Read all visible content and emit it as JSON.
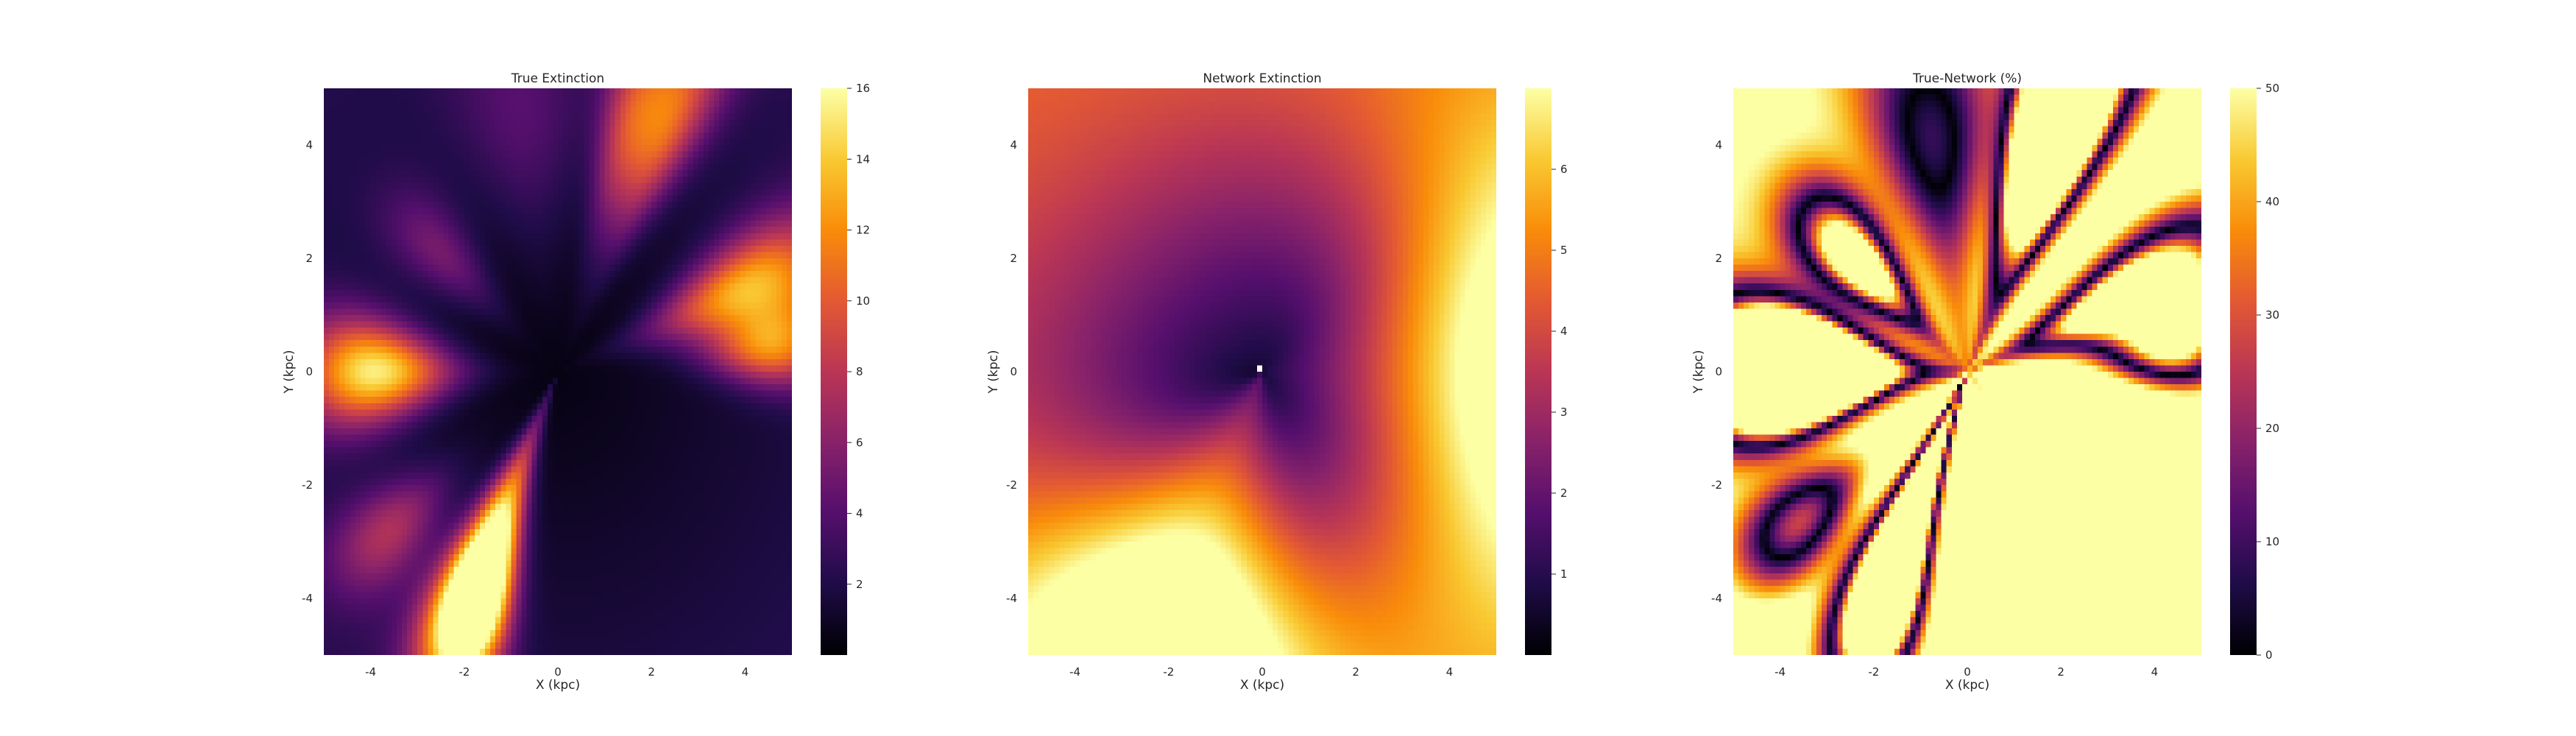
{
  "chart_data": [
    {
      "type": "heatmap",
      "title": "True Extinction",
      "xlabel": "X (kpc)",
      "ylabel": "Y (kpc)",
      "xlim": [
        -5,
        5
      ],
      "ylim": [
        -5,
        5
      ],
      "xticks": [
        -4,
        -2,
        0,
        2,
        4
      ],
      "yticks": [
        4,
        2,
        0,
        -2,
        -4
      ],
      "colormap": "inferno",
      "colorbar": {
        "min": 0,
        "max": 16,
        "ticks": [
          2,
          4,
          6,
          8,
          10,
          12,
          14,
          16
        ]
      },
      "grid": false,
      "features": [
        {
          "angle_deg": 180,
          "r": 3.9,
          "width_deg": 9,
          "amp": 14,
          "spread": 1.1
        },
        {
          "angle_deg": 244,
          "r": 3.5,
          "width_deg": 7,
          "amp": 14,
          "spread": 1.6
        },
        {
          "angle_deg": 247,
          "r": 4.5,
          "width_deg": 6,
          "amp": 16,
          "spread": 1.0
        },
        {
          "angle_deg": 20,
          "r": 4.3,
          "width_deg": 8,
          "amp": 12,
          "spread": 1.4
        },
        {
          "angle_deg": 5,
          "r": 4.6,
          "width_deg": 6,
          "amp": 9,
          "spread": 0.9
        },
        {
          "angle_deg": 62,
          "r": 5.0,
          "width_deg": 6,
          "amp": 9,
          "spread": 1.6
        },
        {
          "angle_deg": 72,
          "r": 4.8,
          "width_deg": 5,
          "amp": 6,
          "spread": 1.4
        },
        {
          "angle_deg": 140,
          "r": 3.3,
          "width_deg": 8,
          "amp": 4,
          "spread": 1.0
        },
        {
          "angle_deg": 218,
          "r": 4.6,
          "width_deg": 7,
          "amp": 6,
          "spread": 1.0
        },
        {
          "angle_deg": 100,
          "r": 4.6,
          "width_deg": 12,
          "amp": 2.5,
          "spread": 1.5
        }
      ]
    },
    {
      "type": "heatmap",
      "title": "Network Extinction",
      "xlabel": "X (kpc)",
      "ylabel": "Y (kpc)",
      "xlim": [
        -5,
        5
      ],
      "ylim": [
        -5,
        5
      ],
      "xticks": [
        -4,
        -2,
        0,
        2,
        4
      ],
      "yticks": [
        4,
        2,
        0,
        -2,
        -4
      ],
      "colormap": "inferno",
      "colorbar": {
        "min": 0,
        "max": 7,
        "ticks": [
          1,
          2,
          3,
          4,
          5,
          6
        ]
      },
      "grid": false,
      "features": [
        {
          "angle_deg": 245,
          "r": 5.5,
          "width_deg": 26,
          "amp": 7,
          "spread": 3.0
        },
        {
          "angle_deg": 0,
          "r": 5.8,
          "width_deg": 30,
          "amp": 5.5,
          "spread": 2.6
        },
        {
          "angle_deg": 135,
          "r": 6.0,
          "width_deg": 45,
          "amp": 1.6,
          "spread": 3.5
        },
        {
          "angle_deg": 300,
          "r": 5.5,
          "width_deg": 35,
          "amp": 1.8,
          "spread": 3.0
        },
        {
          "angle_deg": 60,
          "r": 5.5,
          "width_deg": 40,
          "amp": 1.5,
          "spread": 3.0
        }
      ]
    },
    {
      "type": "heatmap",
      "title": "True-Network (%)",
      "xlabel": "X (kpc)",
      "ylabel": "Y (kpc)",
      "xlim": [
        -5,
        5
      ],
      "ylim": [
        -5,
        5
      ],
      "xticks": [
        -4,
        -2,
        0,
        2,
        4
      ],
      "yticks": [
        4,
        2,
        0,
        -2,
        -4
      ],
      "colormap": "inferno",
      "colorbar": {
        "min": 0,
        "max": 50,
        "ticks": [
          0,
          10,
          20,
          30,
          40,
          50
        ]
      },
      "grid": false
    }
  ]
}
